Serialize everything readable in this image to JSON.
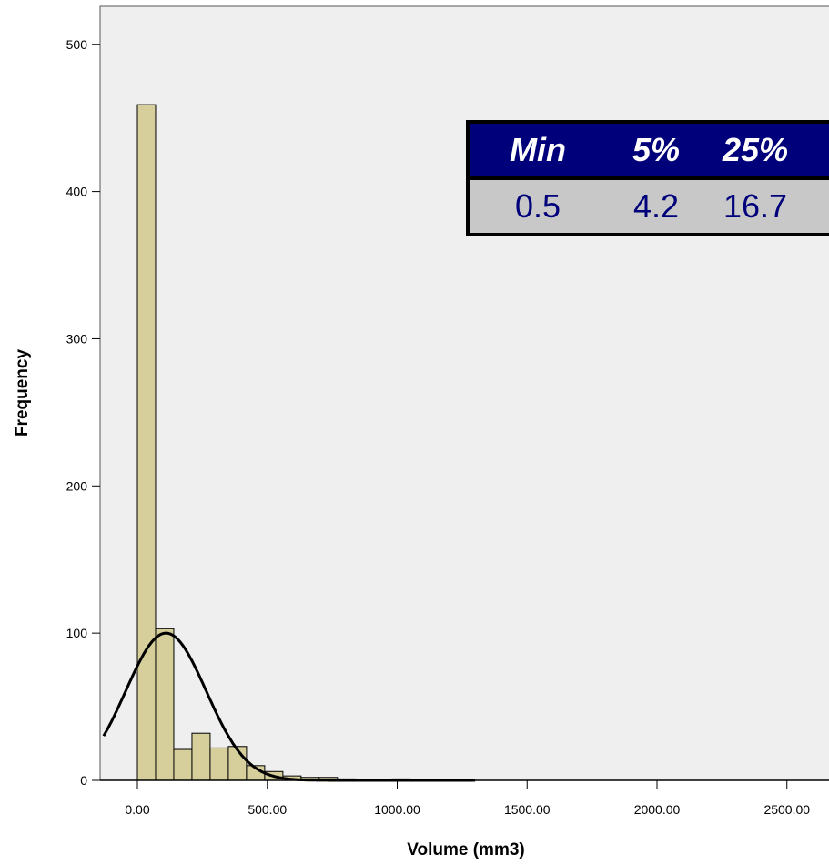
{
  "chart_data": {
    "type": "bar",
    "subtype": "histogram",
    "xlabel": "Volume (mm3)",
    "ylabel": "Frequency",
    "xlim": [
      -130,
      2600
    ],
    "ylim": [
      0,
      525
    ],
    "x_ticks": [
      0,
      500,
      1000,
      1500,
      2000,
      2500
    ],
    "x_tick_labels": [
      "0.00",
      "500.00",
      "1000.00",
      "1500.00",
      "2000.00",
      "2500.00"
    ],
    "y_ticks": [
      0,
      100,
      200,
      300,
      400,
      500
    ],
    "y_tick_labels": [
      "0",
      "100",
      "200",
      "300",
      "400",
      "500"
    ],
    "bin_width": 70,
    "bins": [
      {
        "start": 0,
        "end": 70,
        "count": 459
      },
      {
        "start": 70,
        "end": 140,
        "count": 103
      },
      {
        "start": 140,
        "end": 210,
        "count": 21
      },
      {
        "start": 210,
        "end": 280,
        "count": 32
      },
      {
        "start": 280,
        "end": 350,
        "count": 22
      },
      {
        "start": 350,
        "end": 420,
        "count": 23
      },
      {
        "start": 420,
        "end": 490,
        "count": 10
      },
      {
        "start": 490,
        "end": 560,
        "count": 6
      },
      {
        "start": 560,
        "end": 630,
        "count": 3
      },
      {
        "start": 630,
        "end": 700,
        "count": 2
      },
      {
        "start": 700,
        "end": 770,
        "count": 2
      },
      {
        "start": 770,
        "end": 840,
        "count": 1
      },
      {
        "start": 980,
        "end": 1050,
        "count": 1
      }
    ],
    "normal_curve": {
      "mean": 110,
      "sd": 155,
      "peak": 100
    },
    "grid": false,
    "plot_background": "#efefef",
    "bar_color": "#d6cf9c",
    "curve_color": "#000000"
  },
  "stats_table": {
    "headers": [
      "Min",
      "5%",
      "25%"
    ],
    "values": [
      "0.5",
      "4.2",
      "16.7"
    ],
    "header_bg": "#00007a",
    "header_text_color": "#ffffff",
    "value_bg": "#c8c8c8",
    "value_text_color": "#00007a"
  }
}
